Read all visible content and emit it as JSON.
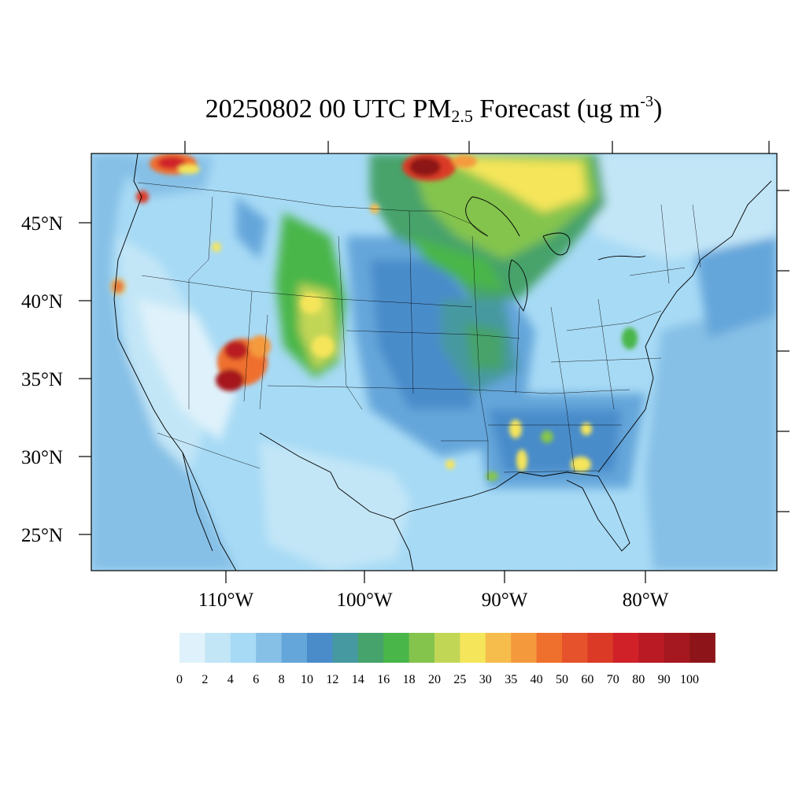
{
  "title": {
    "prefix": "20250802 00 UTC PM",
    "subscript": "2.5",
    "middle": " Forecast (ug m",
    "superscript": "-3",
    "suffix": ")"
  },
  "map": {
    "variable": "PM2.5",
    "units": "ug m-3",
    "valid_time": "20250802 00 UTC",
    "lat_labels": [
      "45°N",
      "40°N",
      "35°N",
      "30°N",
      "25°N"
    ],
    "lon_labels": [
      "110°W",
      "100°W",
      "90°W",
      "80°W"
    ],
    "smoke_plumes": [
      {
        "region": "southern Canada north of Minnesota",
        "level": "90-100"
      },
      {
        "region": "southwest Colorado / northwest New Mexico",
        "level": "90-100"
      },
      {
        "region": "northern Washington / southern British Columbia",
        "level": "60-90"
      },
      {
        "region": "northern California",
        "level": "50-80"
      },
      {
        "region": "eastern Colorado / western Kansas",
        "level": "25-35"
      },
      {
        "region": "Great Lakes and Ontario",
        "level": "18-30"
      },
      {
        "region": "Mississippi, Alabama, Georgia, Florida panhandle",
        "level": "20-35"
      }
    ]
  },
  "colorbar": {
    "labels": [
      "0",
      "2",
      "4",
      "6",
      "8",
      "10",
      "12",
      "14",
      "16",
      "18",
      "20",
      "25",
      "30",
      "35",
      "40",
      "50",
      "60",
      "70",
      "80",
      "90",
      "100"
    ],
    "colors": [
      "#dff2fb",
      "#c3e6f7",
      "#a7daf5",
      "#86c0e6",
      "#65a6da",
      "#4a8cca",
      "#4699a0",
      "#46a36b",
      "#49b64a",
      "#84c44d",
      "#c2d656",
      "#f5e55a",
      "#f6bc4c",
      "#f59a3c",
      "#ef6f2d",
      "#e5522b",
      "#db3a26",
      "#d02129",
      "#b91a23",
      "#a6181f",
      "#8d1519"
    ]
  }
}
